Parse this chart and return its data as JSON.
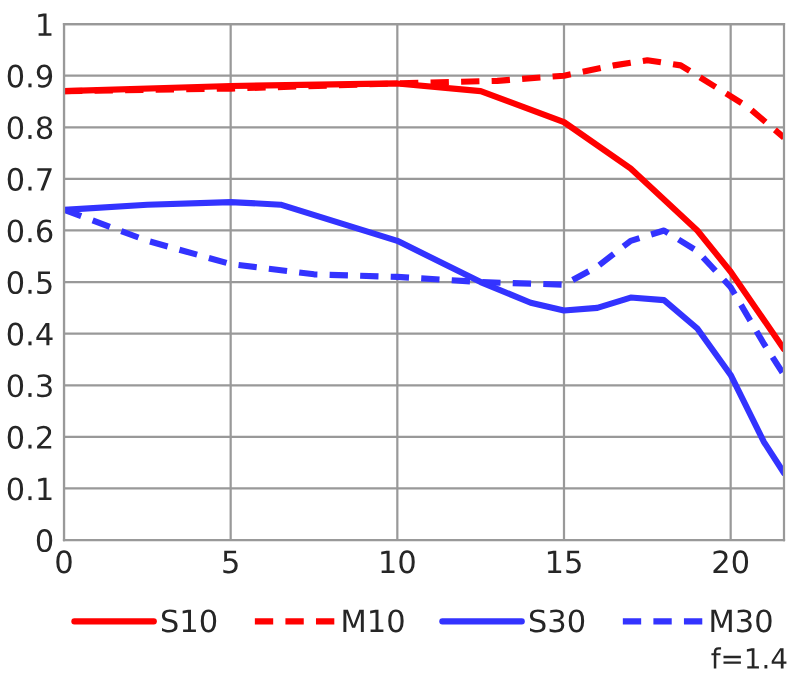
{
  "chart_data": {
    "type": "line",
    "xlim": [
      0,
      21.6
    ],
    "ylim": [
      0,
      1
    ],
    "xticks": [
      0,
      5,
      10,
      15,
      20
    ],
    "yticks": [
      0,
      0.1,
      0.2,
      0.3,
      0.4,
      0.5,
      0.6,
      0.7,
      0.8,
      0.9,
      1
    ],
    "grid": true,
    "legend": "bottom",
    "marker": "none",
    "annotations": [
      "f=1.4"
    ],
    "series": [
      {
        "name": "S10",
        "color": "#ff0000",
        "line_style": "solid",
        "x": [
          0,
          5,
          10,
          12.5,
          15,
          17,
          19,
          20,
          21.6
        ],
        "values": [
          0.87,
          0.88,
          0.885,
          0.87,
          0.81,
          0.72,
          0.6,
          0.52,
          0.37
        ]
      },
      {
        "name": "M10",
        "color": "#ff0000",
        "line_style": "dashed",
        "x": [
          0,
          5,
          10,
          13,
          15,
          16.5,
          17.5,
          18.5,
          19.5,
          20.5,
          21.6
        ],
        "values": [
          0.87,
          0.875,
          0.885,
          0.89,
          0.9,
          0.92,
          0.93,
          0.92,
          0.88,
          0.84,
          0.78
        ]
      },
      {
        "name": "S30",
        "color": "#3333ff",
        "line_style": "solid",
        "x": [
          0,
          2.5,
          5,
          6.5,
          10,
          12.5,
          14,
          15,
          16,
          17,
          18,
          19,
          20,
          21,
          21.6
        ],
        "values": [
          0.64,
          0.65,
          0.655,
          0.65,
          0.58,
          0.5,
          0.46,
          0.445,
          0.45,
          0.47,
          0.465,
          0.41,
          0.32,
          0.19,
          0.13
        ]
      },
      {
        "name": "M30",
        "color": "#3333ff",
        "line_style": "dashed",
        "x": [
          0,
          2.5,
          5,
          7.5,
          10,
          12.5,
          15,
          16,
          17,
          18,
          19,
          20,
          21,
          21.6
        ],
        "values": [
          0.64,
          0.58,
          0.535,
          0.515,
          0.51,
          0.5,
          0.495,
          0.53,
          0.58,
          0.6,
          0.56,
          0.49,
          0.38,
          0.32
        ]
      }
    ]
  }
}
